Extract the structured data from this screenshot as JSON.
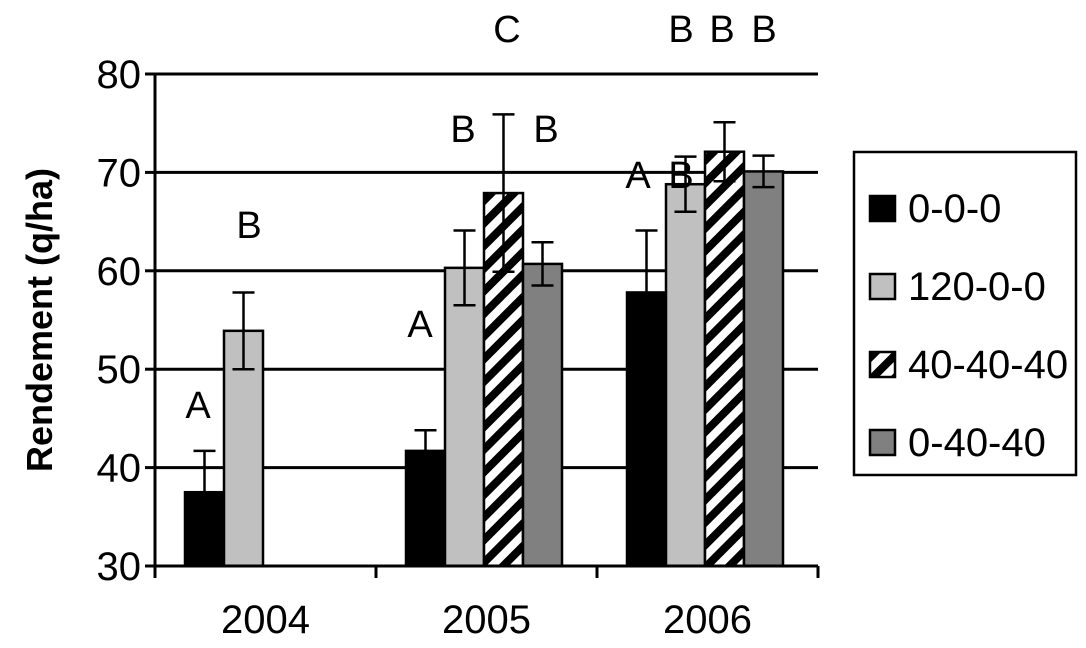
{
  "chart_data": {
    "type": "bar",
    "title": "",
    "xlabel": "",
    "ylabel": "Rendement (q/ha)",
    "ylim": [
      30,
      80
    ],
    "yticks": [
      30,
      40,
      50,
      60,
      70,
      80
    ],
    "grid": true,
    "legend_position": "right",
    "categories": [
      "2004",
      "2005",
      "2006"
    ],
    "series": [
      {
        "name": "0-0-0",
        "color": "#000000",
        "pattern": "solid",
        "values": [
          37.5,
          41.7,
          57.8
        ],
        "errors": [
          4.2,
          2.1,
          6.3
        ],
        "letters": [
          "A",
          "",
          ""
        ]
      },
      {
        "name": "120-0-0",
        "color": "#c0c0c0",
        "pattern": "solid",
        "values": [
          53.9,
          60.3,
          68.8
        ],
        "errors": [
          3.9,
          3.8,
          2.8
        ],
        "letters": [
          "B",
          "A",
          "A"
        ]
      },
      {
        "name": "40-40-40",
        "color": "#ffffff",
        "pattern": "diagonal-stripes",
        "values": [
          null,
          67.9,
          72.1
        ],
        "errors": [
          null,
          8.0,
          3.0
        ],
        "letters": [
          "",
          "B",
          "B"
        ]
      },
      {
        "name": "0-40-40",
        "color": "#808080",
        "pattern": "solid",
        "values": [
          null,
          60.7,
          70.1
        ],
        "errors": [
          null,
          2.2,
          1.6
        ],
        "letters": [
          "",
          "B",
          "B"
        ]
      }
    ],
    "extra_letters": [
      {
        "text": "C",
        "category": "2005",
        "series_index": 2
      },
      {
        "text": "B",
        "category": "2006",
        "series_index": 1
      },
      {
        "text": "B",
        "category": "2006",
        "series_index": 3
      }
    ]
  }
}
